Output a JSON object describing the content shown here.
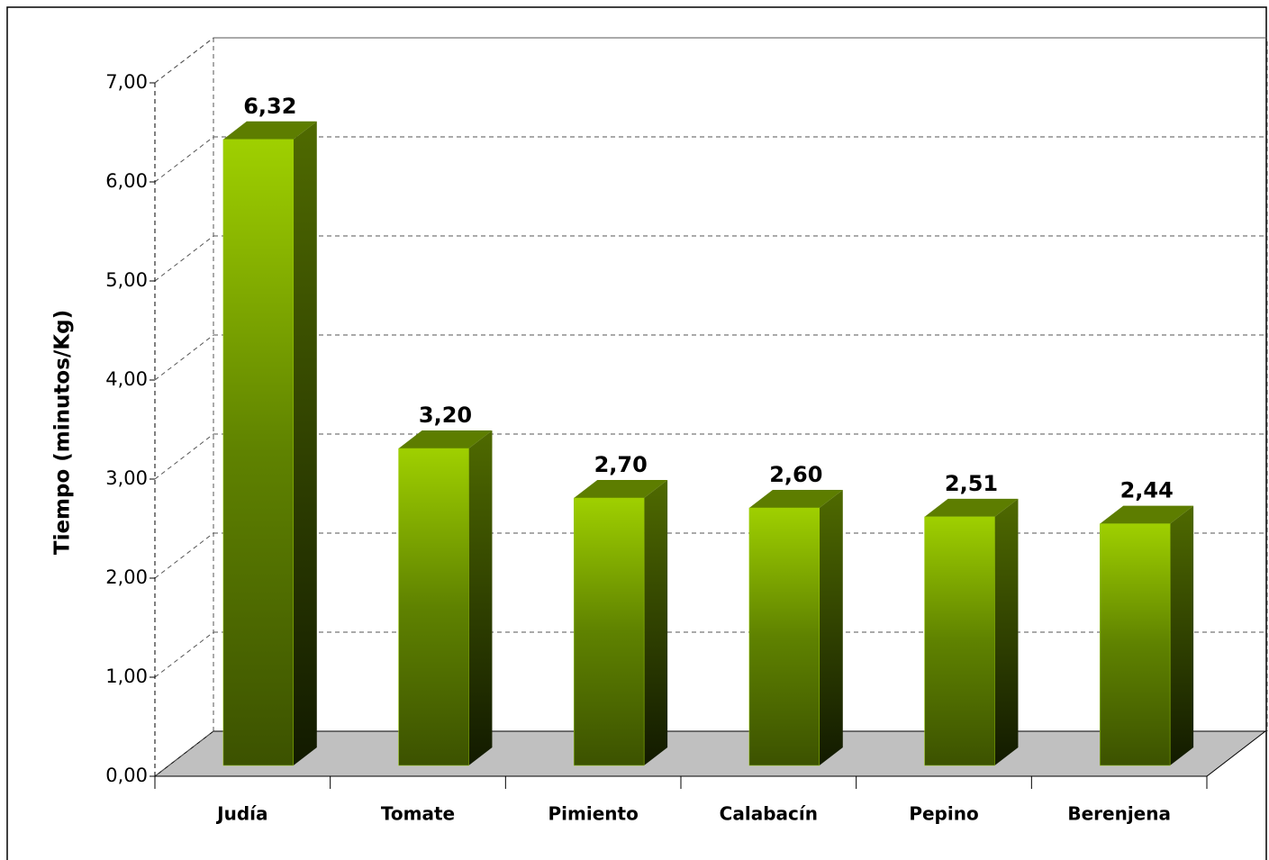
{
  "chart_data": {
    "type": "bar3d",
    "y_axis_label": "Tiempo (minutos/Kg)",
    "categories": [
      "Judía",
      "Tomate",
      "Pimiento",
      "Calabacín",
      "Pepino",
      "Berenjena"
    ],
    "values": [
      6.32,
      3.2,
      2.7,
      2.6,
      2.51,
      2.44
    ],
    "value_labels": [
      "6,32",
      "3,20",
      "2,70",
      "2,60",
      "2,51",
      "2,44"
    ],
    "color": "#99cc00",
    "ylim": [
      0,
      7
    ],
    "yticks": [
      {
        "value": 0,
        "label": "0,00"
      },
      {
        "value": 1,
        "label": "1,00"
      },
      {
        "value": 2,
        "label": "2,00"
      },
      {
        "value": 3,
        "label": "3,00"
      },
      {
        "value": 4,
        "label": "4,00"
      },
      {
        "value": 5,
        "label": "5,00"
      },
      {
        "value": 6,
        "label": "6,00"
      },
      {
        "value": 7,
        "label": "7,00"
      }
    ],
    "grid": true
  }
}
